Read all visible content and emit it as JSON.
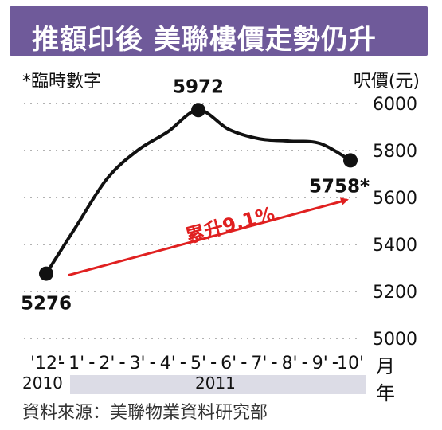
{
  "title": "推額印後 美聯樓價走勢仍升",
  "note": "*臨時數字",
  "unit_label": "呎價(元)",
  "source": "資料來源：美聯物業資料研究部",
  "month_unit": "月",
  "year_unit": "年",
  "years": [
    "2010",
    "2011"
  ],
  "colors": {
    "title_bg": "#6f5a9a",
    "line": "#111111",
    "trend": "#e02020",
    "grid": "#999999",
    "year_band": "#dcdce6"
  },
  "chart_data": {
    "type": "line",
    "title": "推額印後 美聯樓價走勢仍升",
    "xlabel": "月",
    "ylabel": "呎價(元)",
    "categories": [
      "'12",
      "1",
      "2",
      "3",
      "4",
      "5",
      "6",
      "7",
      "8",
      "9",
      "10"
    ],
    "category_labels": [
      "'12'",
      "1'",
      "2'",
      "3'",
      "4'",
      "5'",
      "6'",
      "7'",
      "8'",
      "9'",
      "10'"
    ],
    "values": [
      5276,
      5480,
      5680,
      5800,
      5880,
      5972,
      5890,
      5850,
      5840,
      5830,
      5758
    ],
    "ylim": [
      5000,
      6000
    ],
    "yticks": [
      5000,
      5200,
      5400,
      5600,
      5800,
      6000
    ],
    "grid": true,
    "data_labels": [
      {
        "index": 0,
        "text": "5276"
      },
      {
        "index": 5,
        "text": "5972"
      },
      {
        "index": 10,
        "text": "5758*"
      }
    ],
    "annotation": {
      "text": "累升9.1%",
      "from_index": 0,
      "to_index": 10
    }
  }
}
